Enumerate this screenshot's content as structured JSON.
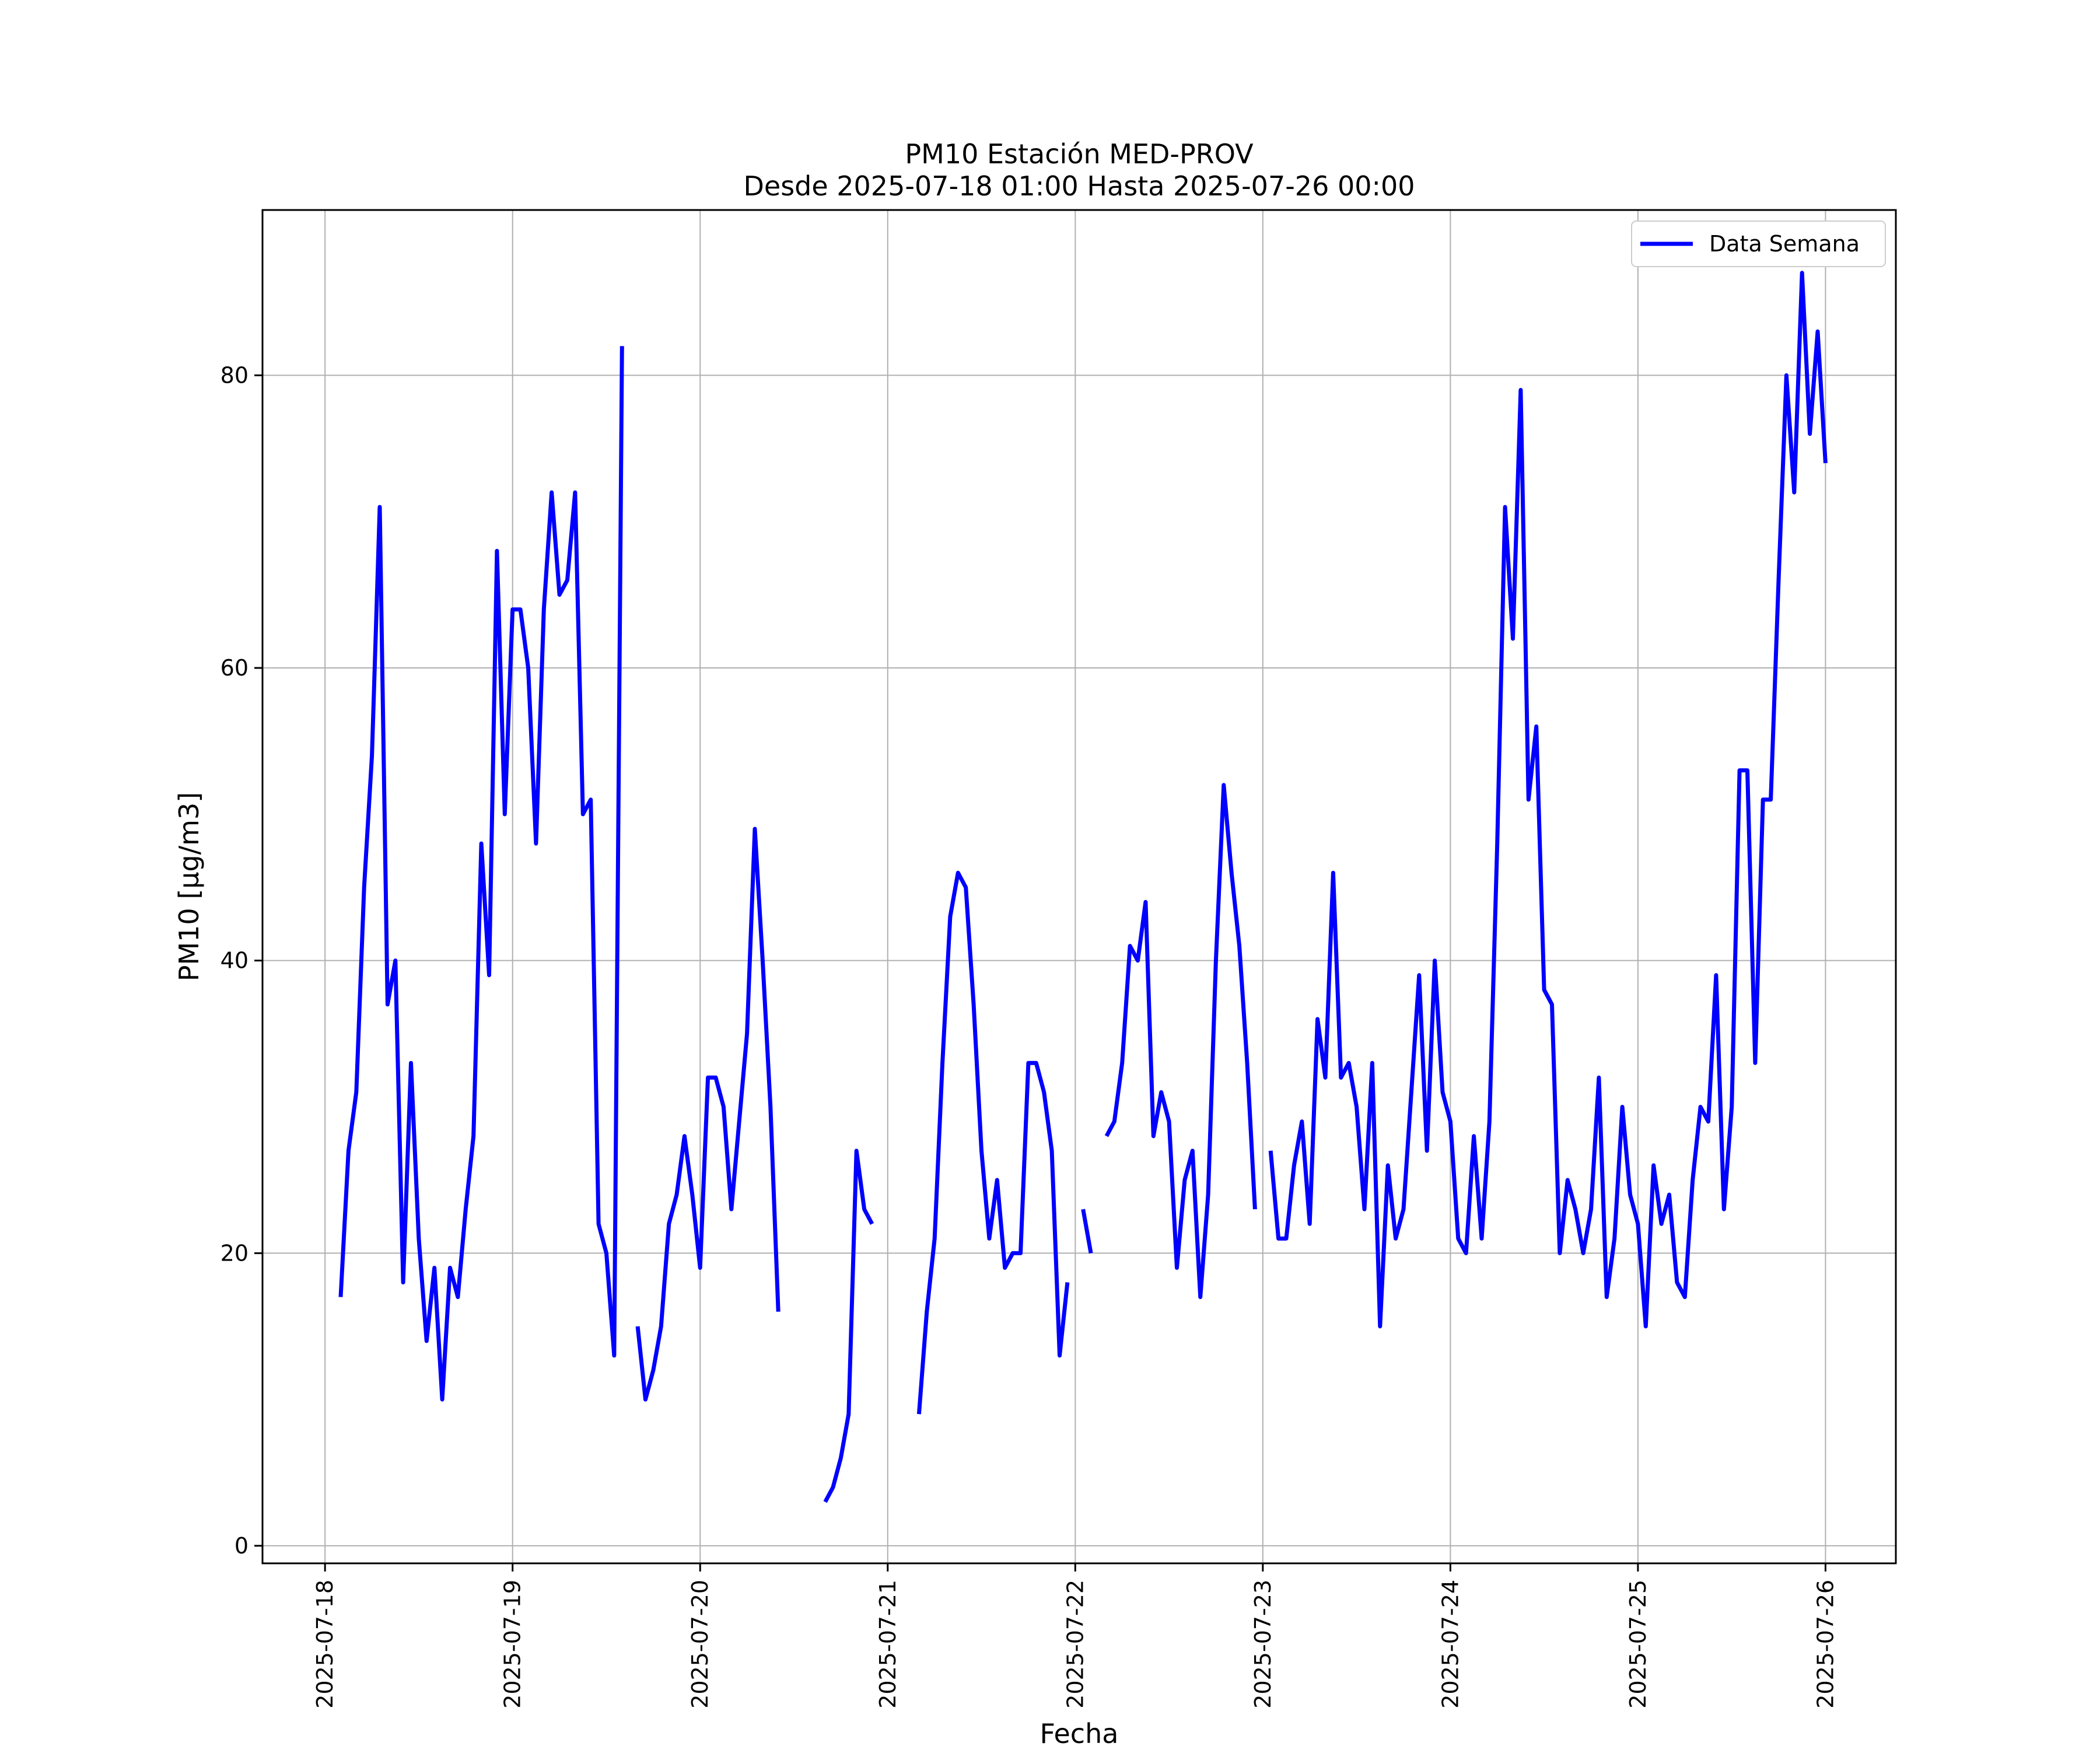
{
  "chart_data": {
    "type": "line",
    "title": "PM10 Estación MED-PROV",
    "subtitle": "Desde 2025-07-18 01:00 Hasta 2025-07-26 00:00",
    "xlabel": "Fecha",
    "ylabel": "PM10 [μg/m3]",
    "ylim": [
      -1.2,
      91.3
    ],
    "xlim": [
      "2025-07-17T16:00",
      "2025-07-26T09:00"
    ],
    "grid": true,
    "legend_position": "top-right",
    "x_ticks": [
      "2025-07-18",
      "2025-07-19",
      "2025-07-20",
      "2025-07-21",
      "2025-07-22",
      "2025-07-23",
      "2025-07-24",
      "2025-07-25",
      "2025-07-26"
    ],
    "y_ticks": [
      0,
      20,
      40,
      60,
      80
    ],
    "colors": {
      "series": "#0000ff"
    },
    "series": [
      {
        "name": "Data Semana",
        "points": [
          [
            "2025-07-18T02:00",
            17
          ],
          [
            "2025-07-18T03:00",
            27
          ],
          [
            "2025-07-18T04:00",
            31
          ],
          [
            "2025-07-18T05:00",
            45
          ],
          [
            "2025-07-18T06:00",
            54
          ],
          [
            "2025-07-18T07:00",
            71
          ],
          [
            "2025-07-18T08:00",
            37
          ],
          [
            "2025-07-18T09:00",
            40
          ],
          [
            "2025-07-18T10:00",
            18
          ],
          [
            "2025-07-18T11:00",
            33
          ],
          [
            "2025-07-18T12:00",
            21
          ],
          [
            "2025-07-18T13:00",
            14
          ],
          [
            "2025-07-18T14:00",
            19
          ],
          [
            "2025-07-18T15:00",
            10
          ],
          [
            "2025-07-18T16:00",
            19
          ],
          [
            "2025-07-18T17:00",
            17
          ],
          [
            "2025-07-18T18:00",
            23
          ],
          [
            "2025-07-18T19:00",
            28
          ],
          [
            "2025-07-18T20:00",
            48
          ],
          [
            "2025-07-18T21:00",
            39
          ],
          [
            "2025-07-18T22:00",
            68
          ],
          [
            "2025-07-18T23:00",
            50
          ],
          [
            "2025-07-19T00:00",
            64
          ],
          [
            "2025-07-19T01:00",
            64
          ],
          [
            "2025-07-19T02:00",
            60
          ],
          [
            "2025-07-19T03:00",
            48
          ],
          [
            "2025-07-19T04:00",
            64
          ],
          [
            "2025-07-19T05:00",
            72
          ],
          [
            "2025-07-19T06:00",
            65
          ],
          [
            "2025-07-19T07:00",
            66
          ],
          [
            "2025-07-19T08:00",
            72
          ],
          [
            "2025-07-19T09:00",
            50
          ],
          [
            "2025-07-19T10:00",
            51
          ],
          [
            "2025-07-19T11:00",
            22
          ],
          [
            "2025-07-19T12:00",
            20
          ],
          [
            "2025-07-19T13:00",
            13
          ],
          [
            "2025-07-19T14:00",
            82
          ],
          null,
          [
            "2025-07-19T16:00",
            15
          ],
          [
            "2025-07-19T17:00",
            10
          ],
          [
            "2025-07-19T18:00",
            12
          ],
          [
            "2025-07-19T19:00",
            15
          ],
          [
            "2025-07-19T20:00",
            22
          ],
          [
            "2025-07-19T21:00",
            24
          ],
          [
            "2025-07-19T22:00",
            28
          ],
          [
            "2025-07-19T23:00",
            24
          ],
          [
            "2025-07-20T00:00",
            19
          ],
          [
            "2025-07-20T01:00",
            32
          ],
          [
            "2025-07-20T02:00",
            32
          ],
          [
            "2025-07-20T03:00",
            30
          ],
          [
            "2025-07-20T04:00",
            23
          ],
          [
            "2025-07-20T05:00",
            29
          ],
          [
            "2025-07-20T06:00",
            35
          ],
          [
            "2025-07-20T07:00",
            49
          ],
          [
            "2025-07-20T08:00",
            40
          ],
          [
            "2025-07-20T09:00",
            30
          ],
          [
            "2025-07-20T10:00",
            16
          ],
          null,
          [
            "2025-07-20T16:00",
            3
          ],
          [
            "2025-07-20T17:00",
            4
          ],
          [
            "2025-07-20T18:00",
            6
          ],
          [
            "2025-07-20T19:00",
            9
          ],
          [
            "2025-07-20T20:00",
            27
          ],
          [
            "2025-07-20T21:00",
            23
          ],
          [
            "2025-07-20T22:00",
            22
          ],
          null,
          [
            "2025-07-21T04:00",
            9
          ],
          [
            "2025-07-21T05:00",
            16
          ],
          [
            "2025-07-21T06:00",
            21
          ],
          [
            "2025-07-21T07:00",
            33
          ],
          [
            "2025-07-21T08:00",
            43
          ],
          [
            "2025-07-21T09:00",
            46
          ],
          [
            "2025-07-21T10:00",
            45
          ],
          [
            "2025-07-21T11:00",
            37
          ],
          [
            "2025-07-21T12:00",
            27
          ],
          [
            "2025-07-21T13:00",
            21
          ],
          [
            "2025-07-21T14:00",
            25
          ],
          [
            "2025-07-21T15:00",
            19
          ],
          [
            "2025-07-21T16:00",
            20
          ],
          [
            "2025-07-21T17:00",
            20
          ],
          [
            "2025-07-21T18:00",
            33
          ],
          [
            "2025-07-21T19:00",
            33
          ],
          [
            "2025-07-21T20:00",
            31
          ],
          [
            "2025-07-21T21:00",
            27
          ],
          [
            "2025-07-21T22:00",
            13
          ],
          [
            "2025-07-21T23:00",
            18
          ],
          null,
          [
            "2025-07-22T01:00",
            23
          ],
          [
            "2025-07-22T02:00",
            20
          ],
          null,
          [
            "2025-07-22T04:00",
            28
          ],
          [
            "2025-07-22T05:00",
            29
          ],
          [
            "2025-07-22T06:00",
            33
          ],
          [
            "2025-07-22T07:00",
            41
          ],
          [
            "2025-07-22T08:00",
            40
          ],
          [
            "2025-07-22T09:00",
            44
          ],
          [
            "2025-07-22T10:00",
            28
          ],
          [
            "2025-07-22T11:00",
            31
          ],
          [
            "2025-07-22T12:00",
            29
          ],
          [
            "2025-07-22T13:00",
            19
          ],
          [
            "2025-07-22T14:00",
            25
          ],
          [
            "2025-07-22T15:00",
            27
          ],
          [
            "2025-07-22T16:00",
            17
          ],
          [
            "2025-07-22T17:00",
            24
          ],
          [
            "2025-07-22T18:00",
            40
          ],
          [
            "2025-07-22T19:00",
            52
          ],
          [
            "2025-07-22T20:00",
            46
          ],
          [
            "2025-07-22T21:00",
            41
          ],
          [
            "2025-07-22T22:00",
            33
          ],
          [
            "2025-07-22T23:00",
            23
          ],
          null,
          [
            "2025-07-23T01:00",
            27
          ],
          [
            "2025-07-23T02:00",
            21
          ],
          [
            "2025-07-23T03:00",
            21
          ],
          [
            "2025-07-23T04:00",
            26
          ],
          [
            "2025-07-23T05:00",
            29
          ],
          [
            "2025-07-23T06:00",
            22
          ],
          [
            "2025-07-23T07:00",
            36
          ],
          [
            "2025-07-23T08:00",
            32
          ],
          [
            "2025-07-23T09:00",
            46
          ],
          [
            "2025-07-23T10:00",
            32
          ],
          [
            "2025-07-23T11:00",
            33
          ],
          [
            "2025-07-23T12:00",
            30
          ],
          [
            "2025-07-23T13:00",
            23
          ],
          [
            "2025-07-23T14:00",
            33
          ],
          [
            "2025-07-23T15:00",
            15
          ],
          [
            "2025-07-23T16:00",
            26
          ],
          [
            "2025-07-23T17:00",
            21
          ],
          [
            "2025-07-23T18:00",
            23
          ],
          [
            "2025-07-23T19:00",
            31
          ],
          [
            "2025-07-23T20:00",
            39
          ],
          [
            "2025-07-23T21:00",
            27
          ],
          [
            "2025-07-23T22:00",
            40
          ],
          [
            "2025-07-23T23:00",
            31
          ],
          [
            "2025-07-24T00:00",
            29
          ],
          [
            "2025-07-24T01:00",
            21
          ],
          [
            "2025-07-24T02:00",
            20
          ],
          [
            "2025-07-24T03:00",
            28
          ],
          [
            "2025-07-24T04:00",
            21
          ],
          [
            "2025-07-24T05:00",
            29
          ],
          [
            "2025-07-24T06:00",
            48
          ],
          [
            "2025-07-24T07:00",
            71
          ],
          [
            "2025-07-24T08:00",
            62
          ],
          [
            "2025-07-24T09:00",
            79
          ],
          [
            "2025-07-24T10:00",
            51
          ],
          [
            "2025-07-24T11:00",
            56
          ],
          [
            "2025-07-24T12:00",
            38
          ],
          [
            "2025-07-24T13:00",
            37
          ],
          [
            "2025-07-24T14:00",
            20
          ],
          [
            "2025-07-24T15:00",
            25
          ],
          [
            "2025-07-24T16:00",
            23
          ],
          [
            "2025-07-24T17:00",
            20
          ],
          [
            "2025-07-24T18:00",
            23
          ],
          [
            "2025-07-24T19:00",
            32
          ],
          [
            "2025-07-24T20:00",
            17
          ],
          [
            "2025-07-24T21:00",
            21
          ],
          [
            "2025-07-24T22:00",
            30
          ],
          [
            "2025-07-24T23:00",
            24
          ],
          [
            "2025-07-25T00:00",
            22
          ],
          [
            "2025-07-25T01:00",
            15
          ],
          [
            "2025-07-25T02:00",
            26
          ],
          [
            "2025-07-25T03:00",
            22
          ],
          [
            "2025-07-25T04:00",
            24
          ],
          [
            "2025-07-25T05:00",
            18
          ],
          [
            "2025-07-25T06:00",
            17
          ],
          [
            "2025-07-25T07:00",
            25
          ],
          [
            "2025-07-25T08:00",
            30
          ],
          [
            "2025-07-25T09:00",
            29
          ],
          [
            "2025-07-25T10:00",
            39
          ],
          [
            "2025-07-25T11:00",
            23
          ],
          [
            "2025-07-25T12:00",
            30
          ],
          [
            "2025-07-25T13:00",
            53
          ],
          [
            "2025-07-25T14:00",
            53
          ],
          [
            "2025-07-25T15:00",
            33
          ],
          [
            "2025-07-25T16:00",
            51
          ],
          [
            "2025-07-25T17:00",
            51
          ],
          [
            "2025-07-25T18:00",
            66
          ],
          [
            "2025-07-25T19:00",
            80
          ],
          [
            "2025-07-25T20:00",
            72
          ],
          [
            "2025-07-25T21:00",
            87
          ],
          [
            "2025-07-25T22:00",
            76
          ],
          [
            "2025-07-25T23:00",
            83
          ],
          [
            "2025-07-26T00:00",
            74
          ]
        ]
      }
    ]
  }
}
